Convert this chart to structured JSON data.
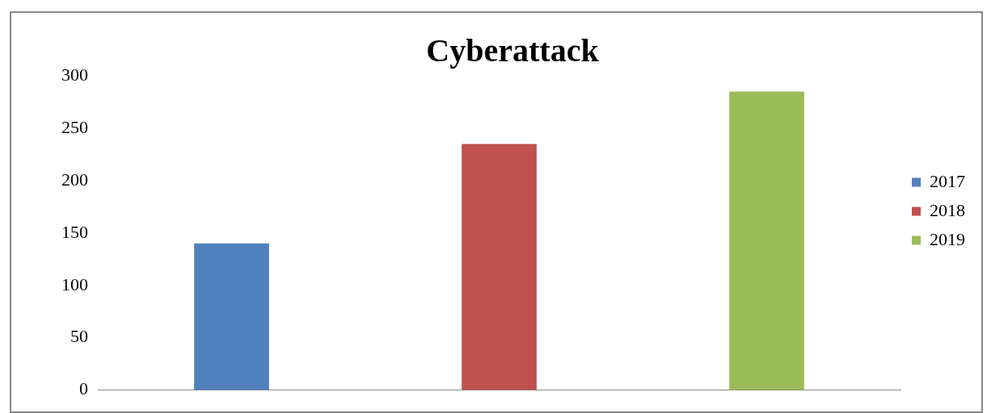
{
  "chart_data": {
    "type": "bar",
    "title": "Cyberattack",
    "categories": [
      null
    ],
    "series": [
      {
        "name": "2017",
        "color": "#4f81bd",
        "values": [
          140
        ]
      },
      {
        "name": "2018",
        "color": "#c0504d",
        "values": [
          235
        ]
      },
      {
        "name": "2019",
        "color": "#9bbb59",
        "values": [
          285
        ]
      }
    ],
    "ylim": [
      0,
      300
    ],
    "yticks": [
      0,
      50,
      100,
      150,
      200,
      250,
      300
    ],
    "grid": false,
    "legend": "right"
  }
}
